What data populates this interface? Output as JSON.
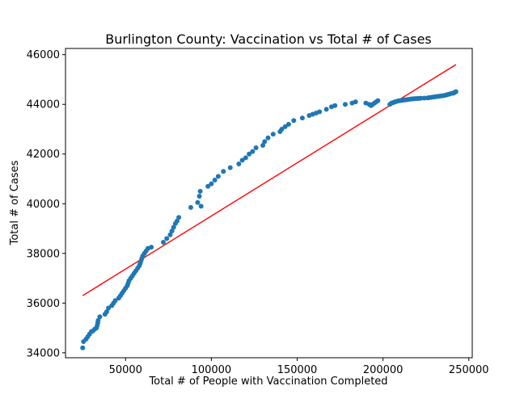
{
  "chart_data": {
    "type": "scatter",
    "title": "Burlington County: Vaccination vs Total # of Cases",
    "xlabel": "Total # of People with Vaccination Completed",
    "ylabel": "Total # of Cases",
    "xlim": [
      15000,
      252000
    ],
    "ylim": [
      33800,
      46250
    ],
    "x_ticks": [
      50000,
      100000,
      150000,
      200000,
      250000
    ],
    "x_tick_labels": [
      "50000",
      "100000",
      "150000",
      "200000",
      "250000"
    ],
    "y_ticks": [
      34000,
      36000,
      38000,
      40000,
      42000,
      44000,
      46000
    ],
    "y_tick_labels": [
      "34000",
      "36000",
      "38000",
      "40000",
      "42000",
      "44000",
      "46000"
    ],
    "grid": false,
    "colors": {
      "points": "#1f77b4",
      "fit_line": "#ff0000"
    },
    "series": [
      {
        "kind": "scatter",
        "x": [
          25000,
          25500,
          27000,
          28000,
          29000,
          30000,
          31000,
          32000,
          33000,
          33500,
          33800,
          34000,
          35000,
          38000,
          39000,
          40000,
          42000,
          43000,
          44000,
          46000,
          47000,
          48000,
          49000,
          50000,
          51000,
          51500,
          52000,
          53000,
          54000,
          55000,
          56000,
          57000,
          58000,
          58500,
          59000,
          59500,
          60000,
          61000,
          62000,
          63000,
          65000,
          72000,
          74000,
          76000,
          77000,
          78000,
          79000,
          80000,
          81000,
          88000,
          92000,
          93000,
          93500,
          94000,
          98000,
          100000,
          102000,
          104000,
          107000,
          111000,
          116000,
          118000,
          120000,
          122000,
          124000,
          126000,
          130000,
          131000,
          133000,
          136000,
          140000,
          141000,
          143000,
          145000,
          148000,
          153000,
          157000,
          159000,
          161000,
          163000,
          167000,
          170000,
          172000,
          178000,
          182000,
          184000,
          190000,
          192000,
          193000,
          194000,
          195000,
          196000,
          197000,
          204000,
          205000,
          206000,
          206500,
          207000,
          208000,
          209000,
          210000,
          211000,
          212000,
          213000,
          214000,
          215000,
          216000,
          217000,
          218000,
          219000,
          220000,
          221000,
          222000,
          224000,
          226000,
          227000,
          228000,
          229000,
          230000,
          231000,
          232000,
          233000,
          234000,
          235000,
          236000,
          237000,
          238000,
          239000,
          240000,
          241000,
          241500,
          242000,
          242500
        ],
        "y": [
          34200,
          34450,
          34550,
          34650,
          34750,
          34850,
          34880,
          34950,
          35000,
          35100,
          35200,
          35300,
          35450,
          35550,
          35650,
          35800,
          35900,
          36000,
          36100,
          36200,
          36300,
          36400,
          36500,
          36600,
          36700,
          36800,
          36900,
          37000,
          37100,
          37200,
          37300,
          37400,
          37500,
          37600,
          37700,
          37800,
          37900,
          38000,
          38100,
          38200,
          38250,
          38450,
          38600,
          38750,
          38900,
          39050,
          39200,
          39300,
          39450,
          39850,
          40050,
          40300,
          40500,
          39900,
          40700,
          40800,
          40950,
          41100,
          41300,
          41450,
          41600,
          41750,
          41850,
          42000,
          42100,
          42250,
          42350,
          42500,
          42650,
          42800,
          42900,
          43000,
          43100,
          43200,
          43350,
          43450,
          43550,
          43600,
          43650,
          43700,
          43800,
          43900,
          43950,
          44000,
          44050,
          44100,
          44050,
          44000,
          43950,
          44000,
          44050,
          44100,
          44150,
          44000,
          44050,
          44070,
          44090,
          44100,
          44120,
          44140,
          44150,
          44160,
          44170,
          44180,
          44190,
          44200,
          44210,
          44220,
          44225,
          44230,
          44235,
          44240,
          44245,
          44250,
          44260,
          44270,
          44280,
          44290,
          44300,
          44310,
          44320,
          44330,
          44340,
          44350,
          44360,
          44380,
          44400,
          44420,
          44440,
          44450,
          44470,
          44490,
          44510
        ]
      },
      {
        "kind": "line",
        "x": [
          25000,
          242500
        ],
        "y": [
          36300,
          45600
        ]
      }
    ]
  }
}
